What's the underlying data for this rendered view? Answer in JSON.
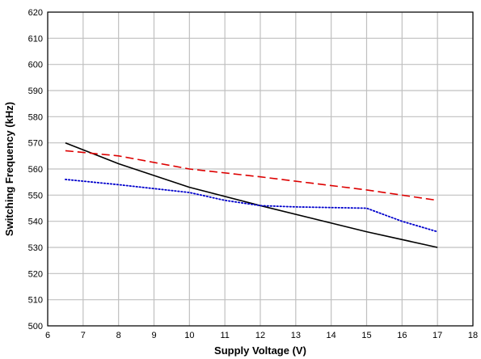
{
  "chart_data": {
    "type": "line",
    "title": "",
    "xlabel": "Supply Voltage (V)",
    "ylabel": "Switching Frequency (kHz)",
    "xlim": [
      6,
      18
    ],
    "ylim": [
      500,
      620
    ],
    "xticks": [
      "6",
      "7",
      "8",
      "9",
      "10",
      "11",
      "12",
      "13",
      "14",
      "15",
      "16",
      "17",
      "18"
    ],
    "yticks": [
      "500",
      "510",
      "520",
      "530",
      "540",
      "550",
      "560",
      "570",
      "580",
      "590",
      "600",
      "610",
      "620"
    ],
    "grid": true,
    "legend": "none",
    "series": [
      {
        "color": "#000000",
        "style": "solid",
        "x": [
          6.5,
          8,
          10,
          12,
          15,
          17
        ],
        "y": [
          570,
          562,
          553,
          546,
          536,
          530
        ]
      },
      {
        "color": "#dd0000",
        "style": "dashed",
        "x": [
          6.5,
          8,
          10,
          12,
          15,
          17
        ],
        "y": [
          567,
          565,
          560,
          557,
          552,
          548
        ]
      },
      {
        "color": "#0000cc",
        "style": "dotted",
        "x": [
          6.5,
          8,
          10,
          11,
          12,
          13,
          15,
          16,
          17
        ],
        "y": [
          556,
          554,
          551,
          548,
          546,
          545.5,
          545,
          540,
          536
        ]
      }
    ]
  }
}
